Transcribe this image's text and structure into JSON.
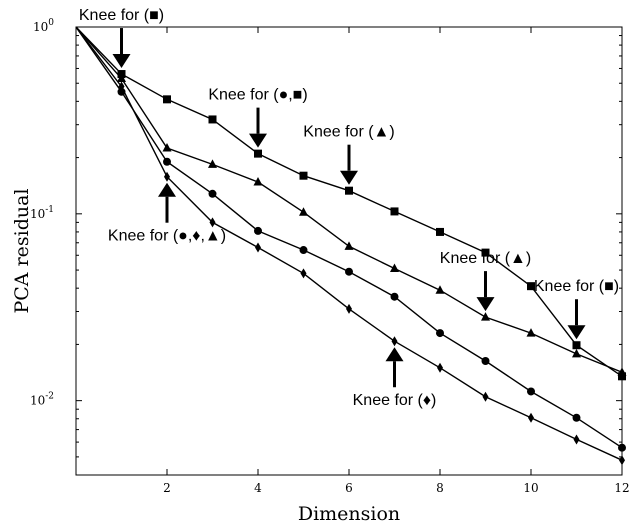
{
  "chart_data": {
    "type": "line",
    "xlabel": "Dimension",
    "ylabel": "PCA residual",
    "yscale": "log",
    "xlim": [
      0,
      12
    ],
    "ylim": [
      0.004,
      1
    ],
    "grid": false,
    "legend": "none",
    "x_ticks": [
      2,
      4,
      6,
      8,
      10,
      12
    ],
    "x_tick_labels": [
      "2",
      "4",
      "6",
      "8",
      "10",
      "12"
    ],
    "y_ticks": [
      0.01,
      0.1,
      1
    ],
    "y_tick_labels": [
      {
        "base": "10",
        "exp": "-2"
      },
      {
        "base": "10",
        "exp": "-1"
      },
      {
        "base": "10",
        "exp": "0"
      }
    ],
    "series": [
      {
        "marker": "square",
        "x": [
          0,
          1,
          2,
          3,
          4,
          5,
          6,
          7,
          8,
          9,
          10,
          11,
          12
        ],
        "values": [
          1.0,
          0.56,
          0.41,
          0.32,
          0.21,
          0.16,
          0.133,
          0.103,
          0.08,
          0.062,
          0.041,
          0.0198,
          0.0135
        ]
      },
      {
        "marker": "triangle",
        "x": [
          0,
          1,
          2,
          3,
          4,
          5,
          6,
          7,
          8,
          9,
          10,
          11,
          12
        ],
        "values": [
          1.0,
          0.53,
          0.225,
          0.184,
          0.148,
          0.102,
          0.067,
          0.051,
          0.039,
          0.028,
          0.023,
          0.0178,
          0.0142
        ]
      },
      {
        "marker": "circle",
        "x": [
          0,
          1,
          2,
          3,
          4,
          5,
          6,
          7,
          8,
          9,
          10,
          11,
          12
        ],
        "values": [
          1.0,
          0.45,
          0.19,
          0.128,
          0.081,
          0.064,
          0.049,
          0.036,
          0.023,
          0.0163,
          0.0112,
          0.0081,
          0.0056
        ]
      },
      {
        "marker": "diamond",
        "x": [
          0,
          1,
          2,
          3,
          4,
          5,
          6,
          7,
          8,
          9,
          10,
          11,
          12
        ],
        "values": [
          1.0,
          0.48,
          0.158,
          0.09,
          0.066,
          0.048,
          0.031,
          0.0208,
          0.015,
          0.0105,
          0.0081,
          0.0062,
          0.0048
        ]
      }
    ],
    "annotations": [
      {
        "text": "Knee for (■)",
        "x": 1,
        "y": 0.56,
        "direction": "down"
      },
      {
        "text": "Knee for (●,■)",
        "x": 4,
        "y": 0.21,
        "direction": "down"
      },
      {
        "text": "Knee for (▲)",
        "x": 6,
        "y": 0.133,
        "direction": "down"
      },
      {
        "text": "Knee for (▲)",
        "x": 9,
        "y": 0.028,
        "direction": "down"
      },
      {
        "text": "Knee for (■)",
        "x": 11,
        "y": 0.0198,
        "direction": "down"
      },
      {
        "text": "Knee for (●,♦,▲)",
        "x": 2,
        "y": 0.158,
        "direction": "up"
      },
      {
        "text": "Knee for (♦)",
        "x": 7,
        "y": 0.0208,
        "direction": "up"
      }
    ]
  }
}
